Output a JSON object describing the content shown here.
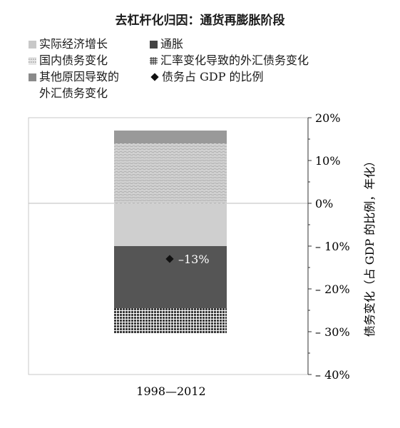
{
  "chart_data": {
    "type": "bar",
    "stacked": true,
    "title": "去杠杆化归因：通货再膨胀阶段",
    "categories": [
      "1998—2012"
    ],
    "series": [
      {
        "name": "实际经济增长",
        "values": [
          -10
        ],
        "color": "#cfcfcf",
        "pattern": "solid-light"
      },
      {
        "name": "通胀",
        "values": [
          -14.5
        ],
        "color": "#555555",
        "pattern": "solid-dark"
      },
      {
        "name": "国内债务变化",
        "values": [
          14
        ],
        "color": "#d6d6d6",
        "pattern": "dots"
      },
      {
        "name": "汇率变化导致的外汇债务变化",
        "values": [
          -6
        ],
        "color": "#333333",
        "pattern": "grid"
      },
      {
        "name": "其他原因导致的\n外汇债务变化",
        "values": [
          3
        ],
        "color": "#999999",
        "pattern": "solid-mid"
      }
    ],
    "markers": [
      {
        "name": "债务占 GDP 的比例",
        "value": -13,
        "label": "–13%"
      }
    ],
    "ylabel": "债务变化（占 GDP 的比例，年化）",
    "yaxis_position": "right",
    "ylim": [
      -40,
      20
    ],
    "yticks": [
      20,
      10,
      0,
      -10,
      -20,
      -30,
      -40
    ],
    "ytick_labels": [
      "20%",
      "10%",
      "0%",
      "– 10%",
      "– 20%",
      "– 30%",
      "– 40%"
    ],
    "grid": false,
    "zero_line": true,
    "legend_position": "top"
  }
}
